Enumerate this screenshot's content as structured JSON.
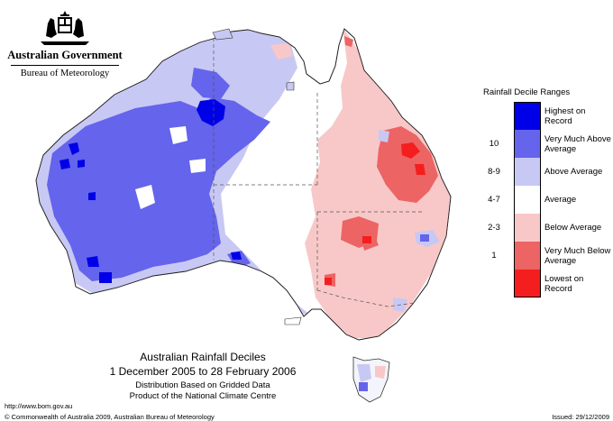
{
  "logo": {
    "organisation": "Australian Government",
    "agency": "Bureau of Meteorology",
    "emblem": "commonwealth-coat-of-arms"
  },
  "legend": {
    "title": "Rainfall Decile Ranges",
    "items": [
      {
        "range": "",
        "label": "Highest on Record",
        "color": "#0000e8"
      },
      {
        "range": "10",
        "label": "Very Much Above Average",
        "color": "#6464ec"
      },
      {
        "range": "8-9",
        "label": "Above Average",
        "color": "#c8c8f4"
      },
      {
        "range": "4-7",
        "label": "Average",
        "color": "#ffffff"
      },
      {
        "range": "2-3",
        "label": "Below Average",
        "color": "#f8c8c8"
      },
      {
        "range": "1",
        "label": "Very Much Below Average",
        "color": "#ec6464"
      },
      {
        "range": "",
        "label": "Lowest on Record",
        "color": "#f41e1e"
      }
    ]
  },
  "caption": {
    "title": "Australian Rainfall Deciles",
    "period": "1 December 2005 to 28 February 2006",
    "note1": "Distribution Based on Gridded Data",
    "note2": "Product of the National Climate Centre"
  },
  "footer": {
    "url": "http://www.bom.gov.au",
    "copyright": "© Commonwealth of Australia 2009, Australian Bureau of Meteorology",
    "issued": "Issued: 29/12/2009"
  },
  "map": {
    "west_north_central_pattern": "above-average (blue)",
    "east_pattern": "below-average (red)",
    "tasmania_pattern": "mixed, mostly average"
  }
}
